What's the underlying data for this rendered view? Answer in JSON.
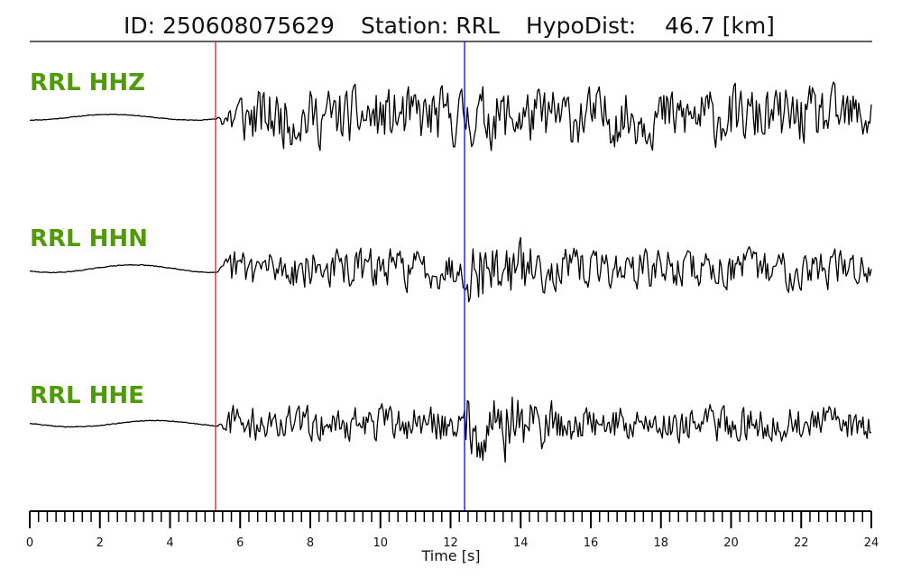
{
  "title": {
    "id_text": "ID: 250608075629",
    "station_text": "Station: RRL",
    "dist_text": "HypoDist:    46.7 [km]"
  },
  "colors": {
    "label": "#4f9a06",
    "trace": "#000000",
    "p_pick": "#e8252a",
    "s_pick": "#1b1bd8",
    "axis": "#000000"
  },
  "chart_data": {
    "type": "line",
    "xlabel": "Time [s]",
    "ylabel": "",
    "xlim": [
      0,
      24
    ],
    "x_ticks": [
      0,
      2,
      4,
      6,
      8,
      10,
      12,
      14,
      16,
      18,
      20,
      22,
      24
    ],
    "x_tick_labels": [
      "0",
      "2",
      "4",
      "6",
      "8",
      "10",
      "12",
      "14",
      "16",
      "18",
      "20",
      "22",
      "24"
    ],
    "minor_tick_step": 0.25,
    "picks": [
      {
        "phase": "P",
        "time": 5.3,
        "color": "#e8252a"
      },
      {
        "phase": "S",
        "time": 12.4,
        "color": "#1b1bd8"
      }
    ],
    "series": [
      {
        "name": "RRL HHZ",
        "onset": 5.35,
        "noise_amp": 0.045,
        "coda_amp": 0.55,
        "s_gain": 1.05,
        "seed": 11
      },
      {
        "name": "RRL HHN",
        "onset": 5.4,
        "noise_amp": 0.06,
        "coda_amp": 0.38,
        "s_gain": 1.6,
        "seed": 29
      },
      {
        "name": "RRL HHE",
        "onset": 5.4,
        "noise_amp": 0.05,
        "coda_amp": 0.34,
        "s_gain": 2.1,
        "seed": 47
      }
    ]
  }
}
